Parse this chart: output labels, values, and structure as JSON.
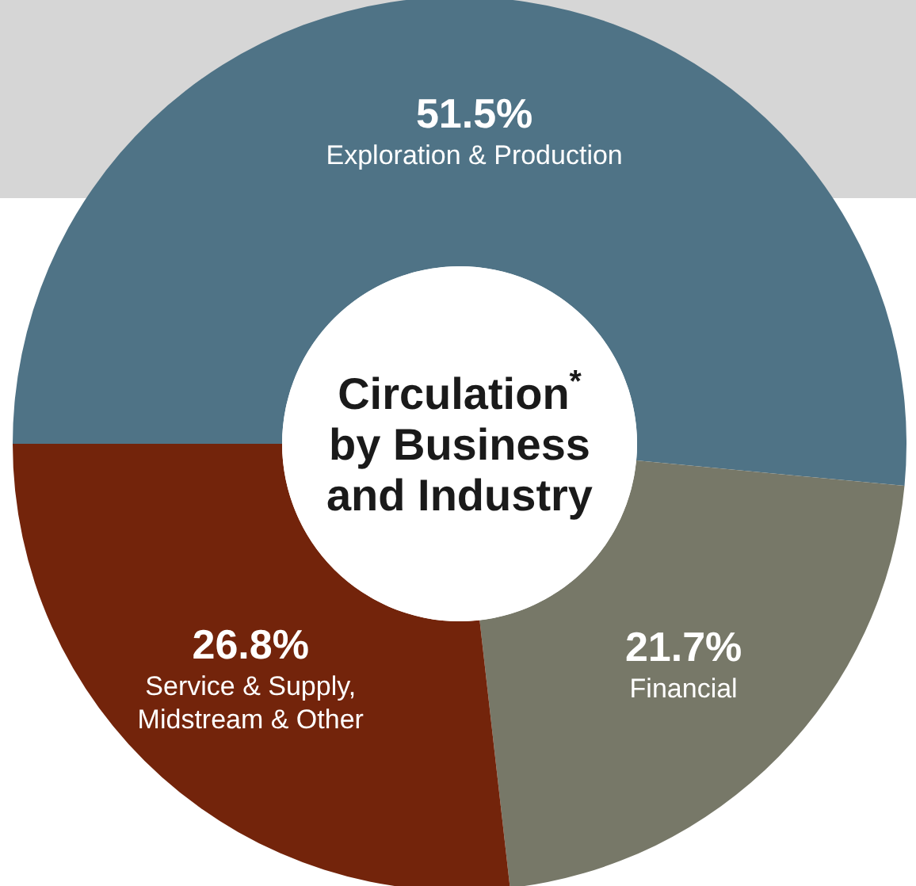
{
  "chart_data": {
    "type": "donut",
    "title": "Circulation$^{*}$ by Business and Industry",
    "categories": [
      "Exploration & Production",
      "Financial",
      "Service & Supply, Midstream & Other"
    ],
    "values": [
      51.5,
      21.7,
      26.8
    ],
    "value_labels": [
      "51.5%",
      "21.7%",
      "26.8%"
    ],
    "colors": [
      "#4f7386",
      "#777868",
      "#73240b"
    ]
  }
}
